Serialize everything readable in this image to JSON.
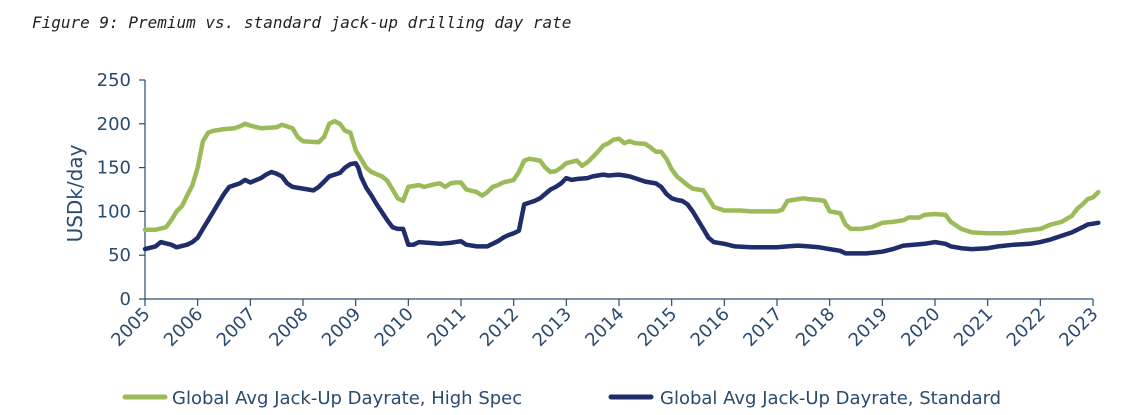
{
  "figure_title": "Figure 9: Premium vs. standard jack-up drilling day rate",
  "chart_data": {
    "type": "line",
    "ylabel": "USDk/day",
    "ylim": [
      0,
      250
    ],
    "yticks": [
      0,
      50,
      100,
      150,
      200,
      250
    ],
    "xlim": [
      2005,
      2023
    ],
    "xticks": [
      "2005",
      "2006",
      "2007",
      "2008",
      "2009",
      "2010",
      "2011",
      "2012",
      "2013",
      "2014",
      "2015",
      "2016",
      "2017",
      "2018",
      "2019",
      "2020",
      "2021",
      "2022",
      "2023"
    ],
    "grid": false,
    "legend_position": "bottom",
    "series": [
      {
        "name": "Global Avg Jack-Up Dayrate, High Spec",
        "color": "#9bbb59",
        "points": [
          [
            2005.0,
            79
          ],
          [
            2005.2,
            79
          ],
          [
            2005.4,
            82
          ],
          [
            2005.5,
            90
          ],
          [
            2005.6,
            100
          ],
          [
            2005.7,
            106
          ],
          [
            2005.8,
            118
          ],
          [
            2005.9,
            130
          ],
          [
            2006.0,
            150
          ],
          [
            2006.1,
            180
          ],
          [
            2006.2,
            190
          ],
          [
            2006.3,
            192
          ],
          [
            2006.5,
            194
          ],
          [
            2006.7,
            195
          ],
          [
            2006.8,
            197
          ],
          [
            2006.9,
            200
          ],
          [
            2007.0,
            198
          ],
          [
            2007.2,
            195
          ],
          [
            2007.5,
            196
          ],
          [
            2007.6,
            199
          ],
          [
            2007.8,
            195
          ],
          [
            2007.9,
            185
          ],
          [
            2008.0,
            180
          ],
          [
            2008.3,
            179
          ],
          [
            2008.4,
            185
          ],
          [
            2008.5,
            200
          ],
          [
            2008.6,
            203
          ],
          [
            2008.7,
            200
          ],
          [
            2008.8,
            192
          ],
          [
            2008.9,
            190
          ],
          [
            2009.0,
            170
          ],
          [
            2009.1,
            160
          ],
          [
            2009.2,
            150
          ],
          [
            2009.3,
            145
          ],
          [
            2009.5,
            140
          ],
          [
            2009.6,
            135
          ],
          [
            2009.7,
            125
          ],
          [
            2009.8,
            115
          ],
          [
            2009.9,
            112
          ],
          [
            2010.0,
            128
          ],
          [
            2010.2,
            130
          ],
          [
            2010.3,
            128
          ],
          [
            2010.5,
            131
          ],
          [
            2010.6,
            132
          ],
          [
            2010.7,
            128
          ],
          [
            2010.8,
            132
          ],
          [
            2010.9,
            133
          ],
          [
            2011.0,
            133
          ],
          [
            2011.1,
            125
          ],
          [
            2011.3,
            122
          ],
          [
            2011.4,
            118
          ],
          [
            2011.5,
            122
          ],
          [
            2011.6,
            128
          ],
          [
            2011.7,
            130
          ],
          [
            2011.8,
            133
          ],
          [
            2012.0,
            136
          ],
          [
            2012.1,
            145
          ],
          [
            2012.2,
            158
          ],
          [
            2012.3,
            160
          ],
          [
            2012.5,
            158
          ],
          [
            2012.6,
            150
          ],
          [
            2012.7,
            145
          ],
          [
            2012.8,
            146
          ],
          [
            2012.9,
            150
          ],
          [
            2013.0,
            155
          ],
          [
            2013.2,
            158
          ],
          [
            2013.3,
            152
          ],
          [
            2013.4,
            156
          ],
          [
            2013.5,
            162
          ],
          [
            2013.6,
            168
          ],
          [
            2013.7,
            175
          ],
          [
            2013.8,
            178
          ],
          [
            2013.9,
            182
          ],
          [
            2014.0,
            183
          ],
          [
            2014.1,
            178
          ],
          [
            2014.2,
            180
          ],
          [
            2014.3,
            178
          ],
          [
            2014.5,
            177
          ],
          [
            2014.6,
            173
          ],
          [
            2014.7,
            168
          ],
          [
            2014.8,
            168
          ],
          [
            2014.9,
            160
          ],
          [
            2015.0,
            148
          ],
          [
            2015.1,
            140
          ],
          [
            2015.2,
            135
          ],
          [
            2015.3,
            130
          ],
          [
            2015.4,
            126
          ],
          [
            2015.6,
            124
          ],
          [
            2015.7,
            115
          ],
          [
            2015.8,
            105
          ],
          [
            2015.9,
            103
          ],
          [
            2016.0,
            101
          ],
          [
            2016.3,
            101
          ],
          [
            2016.5,
            100
          ],
          [
            2016.8,
            100
          ],
          [
            2017.0,
            100
          ],
          [
            2017.1,
            102
          ],
          [
            2017.2,
            112
          ],
          [
            2017.4,
            114
          ],
          [
            2017.5,
            115
          ],
          [
            2017.6,
            114
          ],
          [
            2017.8,
            113
          ],
          [
            2017.9,
            112
          ],
          [
            2018.0,
            100
          ],
          [
            2018.2,
            98
          ],
          [
            2018.3,
            85
          ],
          [
            2018.4,
            80
          ],
          [
            2018.6,
            80
          ],
          [
            2018.8,
            82
          ],
          [
            2019.0,
            87
          ],
          [
            2019.2,
            88
          ],
          [
            2019.4,
            90
          ],
          [
            2019.5,
            93
          ],
          [
            2019.7,
            93
          ],
          [
            2019.8,
            96
          ],
          [
            2020.0,
            97
          ],
          [
            2020.2,
            96
          ],
          [
            2020.3,
            88
          ],
          [
            2020.5,
            80
          ],
          [
            2020.7,
            76
          ],
          [
            2021.0,
            75
          ],
          [
            2021.3,
            75
          ],
          [
            2021.5,
            76
          ],
          [
            2021.7,
            78
          ],
          [
            2022.0,
            80
          ],
          [
            2022.2,
            85
          ],
          [
            2022.4,
            88
          ],
          [
            2022.6,
            95
          ],
          [
            2022.7,
            103
          ],
          [
            2022.8,
            108
          ],
          [
            2022.9,
            114
          ],
          [
            2023.0,
            116
          ],
          [
            2023.1,
            122
          ]
        ]
      },
      {
        "name": "Global Avg Jack-Up Dayrate, Standard",
        "color": "#1f2d6b",
        "points": [
          [
            2005.0,
            57
          ],
          [
            2005.2,
            60
          ],
          [
            2005.3,
            65
          ],
          [
            2005.5,
            62
          ],
          [
            2005.6,
            59
          ],
          [
            2005.8,
            62
          ],
          [
            2005.9,
            65
          ],
          [
            2006.0,
            70
          ],
          [
            2006.1,
            80
          ],
          [
            2006.2,
            90
          ],
          [
            2006.3,
            100
          ],
          [
            2006.4,
            110
          ],
          [
            2006.5,
            120
          ],
          [
            2006.6,
            128
          ],
          [
            2006.8,
            132
          ],
          [
            2006.9,
            136
          ],
          [
            2007.0,
            133
          ],
          [
            2007.2,
            138
          ],
          [
            2007.3,
            142
          ],
          [
            2007.4,
            145
          ],
          [
            2007.5,
            143
          ],
          [
            2007.6,
            140
          ],
          [
            2007.7,
            132
          ],
          [
            2007.8,
            128
          ],
          [
            2008.0,
            126
          ],
          [
            2008.2,
            124
          ],
          [
            2008.3,
            128
          ],
          [
            2008.4,
            134
          ],
          [
            2008.5,
            140
          ],
          [
            2008.6,
            142
          ],
          [
            2008.7,
            144
          ],
          [
            2008.8,
            150
          ],
          [
            2008.9,
            154
          ],
          [
            2009.0,
            155
          ],
          [
            2009.05,
            150
          ],
          [
            2009.1,
            140
          ],
          [
            2009.2,
            127
          ],
          [
            2009.3,
            118
          ],
          [
            2009.4,
            108
          ],
          [
            2009.5,
            99
          ],
          [
            2009.6,
            90
          ],
          [
            2009.7,
            82
          ],
          [
            2009.8,
            80
          ],
          [
            2009.9,
            80
          ],
          [
            2010.0,
            62
          ],
          [
            2010.1,
            62
          ],
          [
            2010.2,
            65
          ],
          [
            2010.4,
            64
          ],
          [
            2010.6,
            63
          ],
          [
            2010.8,
            64
          ],
          [
            2011.0,
            66
          ],
          [
            2011.1,
            62
          ],
          [
            2011.3,
            60
          ],
          [
            2011.5,
            60
          ],
          [
            2011.6,
            63
          ],
          [
            2011.7,
            66
          ],
          [
            2011.8,
            70
          ],
          [
            2011.9,
            73
          ],
          [
            2012.0,
            75
          ],
          [
            2012.1,
            78
          ],
          [
            2012.2,
            108
          ],
          [
            2012.3,
            110
          ],
          [
            2012.4,
            112
          ],
          [
            2012.5,
            115
          ],
          [
            2012.6,
            120
          ],
          [
            2012.7,
            125
          ],
          [
            2012.8,
            128
          ],
          [
            2012.9,
            132
          ],
          [
            2013.0,
            138
          ],
          [
            2013.1,
            136
          ],
          [
            2013.2,
            137
          ],
          [
            2013.4,
            138
          ],
          [
            2013.5,
            140
          ],
          [
            2013.7,
            142
          ],
          [
            2013.8,
            141
          ],
          [
            2014.0,
            142
          ],
          [
            2014.2,
            140
          ],
          [
            2014.3,
            138
          ],
          [
            2014.5,
            134
          ],
          [
            2014.7,
            132
          ],
          [
            2014.8,
            128
          ],
          [
            2014.9,
            120
          ],
          [
            2015.0,
            115
          ],
          [
            2015.1,
            113
          ],
          [
            2015.2,
            112
          ],
          [
            2015.3,
            108
          ],
          [
            2015.4,
            100
          ],
          [
            2015.5,
            90
          ],
          [
            2015.6,
            80
          ],
          [
            2015.7,
            70
          ],
          [
            2015.8,
            65
          ],
          [
            2016.0,
            63
          ],
          [
            2016.2,
            60
          ],
          [
            2016.5,
            59
          ],
          [
            2016.8,
            59
          ],
          [
            2017.0,
            59
          ],
          [
            2017.2,
            60
          ],
          [
            2017.4,
            61
          ],
          [
            2017.6,
            60
          ],
          [
            2017.8,
            59
          ],
          [
            2018.0,
            57
          ],
          [
            2018.2,
            55
          ],
          [
            2018.3,
            52
          ],
          [
            2018.5,
            52
          ],
          [
            2018.7,
            52
          ],
          [
            2019.0,
            54
          ],
          [
            2019.2,
            57
          ],
          [
            2019.4,
            61
          ],
          [
            2019.6,
            62
          ],
          [
            2019.8,
            63
          ],
          [
            2020.0,
            65
          ],
          [
            2020.2,
            63
          ],
          [
            2020.3,
            60
          ],
          [
            2020.5,
            58
          ],
          [
            2020.7,
            57
          ],
          [
            2021.0,
            58
          ],
          [
            2021.2,
            60
          ],
          [
            2021.5,
            62
          ],
          [
            2021.8,
            63
          ],
          [
            2022.0,
            65
          ],
          [
            2022.2,
            68
          ],
          [
            2022.4,
            72
          ],
          [
            2022.6,
            76
          ],
          [
            2022.8,
            82
          ],
          [
            2022.9,
            85
          ],
          [
            2023.0,
            86
          ],
          [
            2023.1,
            87
          ]
        ]
      }
    ]
  }
}
